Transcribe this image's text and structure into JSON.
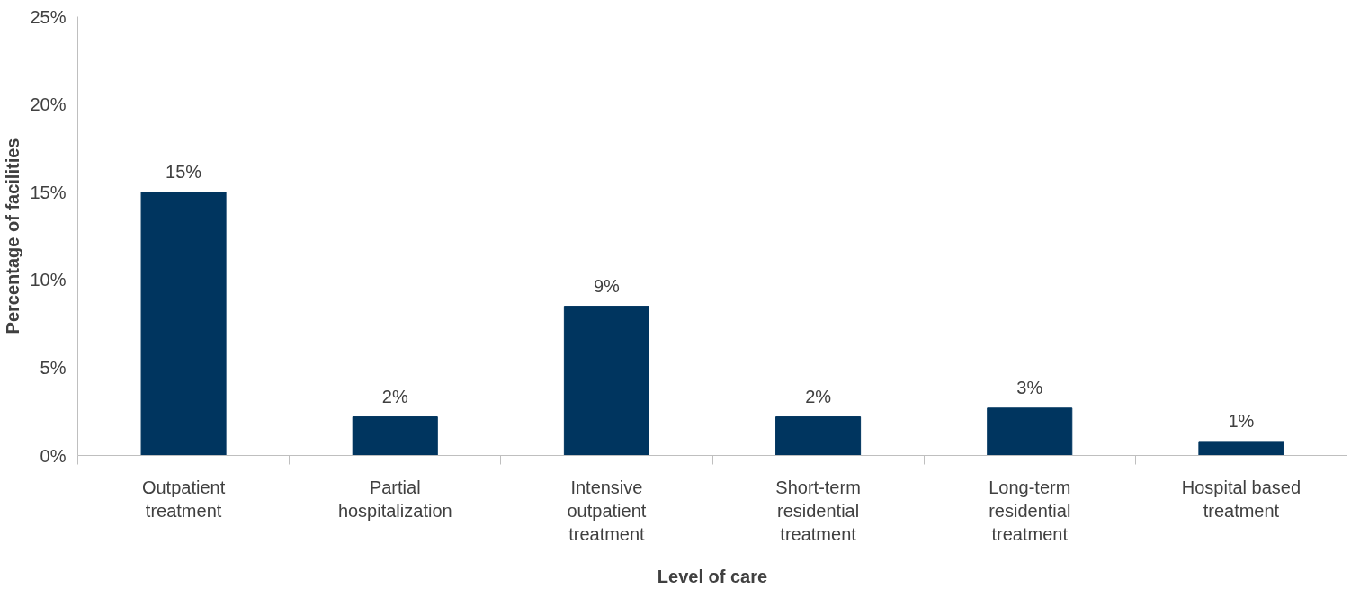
{
  "chart_data": {
    "type": "bar",
    "xlabel": "Level of care",
    "ylabel": "Percentage of facilities",
    "categories": [
      "Outpatient treatment",
      "Partial hospitalization",
      "Intensive outpatient treatment",
      "Short-term residential treatment",
      "Long-term residential treatment",
      "Hospital based treatment"
    ],
    "values": [
      15,
      2.2,
      8.5,
      2.2,
      2.7,
      0.8
    ],
    "value_labels": [
      "15%",
      "2%",
      "9%",
      "2%",
      "3%",
      "1%"
    ],
    "color": "#00355f",
    "ylim": [
      0,
      25
    ],
    "yticks": [
      {
        "value": 0,
        "label": "0%"
      },
      {
        "value": 5,
        "label": "5%"
      },
      {
        "value": 10,
        "label": "10%"
      },
      {
        "value": 15,
        "label": "15%"
      },
      {
        "value": 20,
        "label": "20%"
      },
      {
        "value": 25,
        "label": "25%"
      }
    ],
    "grid": false
  }
}
